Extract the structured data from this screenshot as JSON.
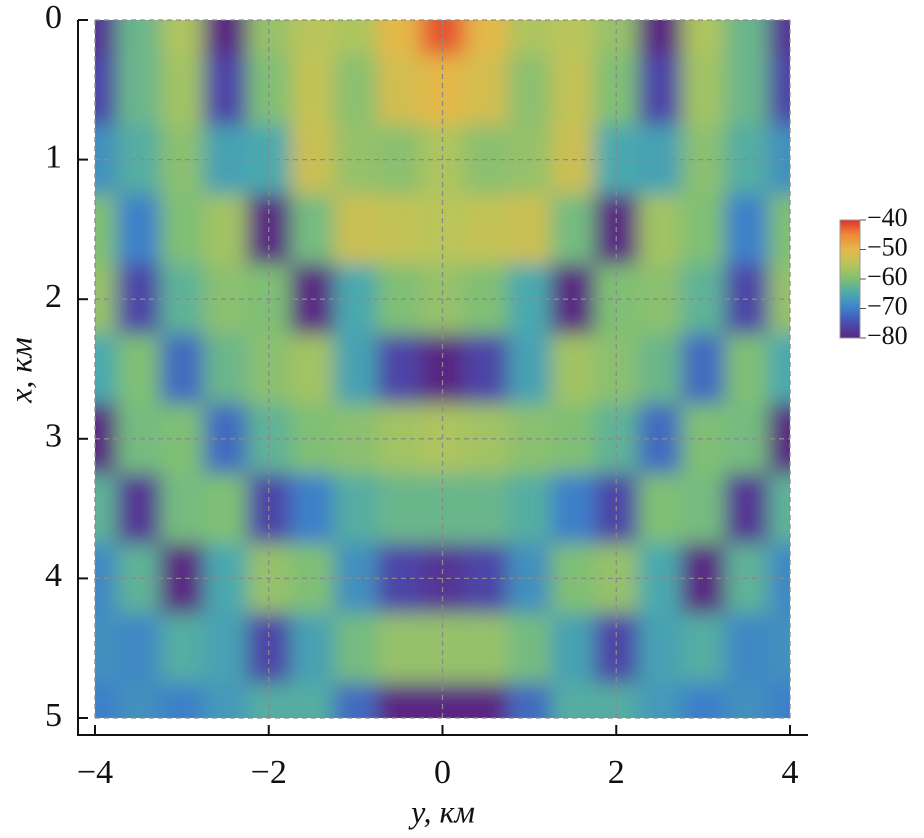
{
  "chart_data": {
    "type": "heatmap",
    "x_label": "y, км",
    "y_label": "x, км",
    "x": [
      -4,
      -3.5,
      -3,
      -2.5,
      -2,
      -1.5,
      -1,
      -0.5,
      0,
      0.5,
      1,
      1.5,
      2,
      2.5,
      3,
      3.5,
      4
    ],
    "y": [
      0,
      0.5,
      1,
      1.5,
      2,
      2.5,
      3,
      3.5,
      4,
      4.5,
      5
    ],
    "z": [
      [
        -78,
        -62,
        -56,
        -80,
        -58,
        -55,
        -56,
        -50,
        -42,
        -50,
        -56,
        -55,
        -58,
        -80,
        -56,
        -62,
        -78
      ],
      [
        -76,
        -62,
        -57,
        -76,
        -60,
        -54,
        -59,
        -52,
        -50,
        -52,
        -59,
        -54,
        -60,
        -76,
        -57,
        -62,
        -76
      ],
      [
        -68,
        -64,
        -59,
        -66,
        -65,
        -53,
        -58,
        -59,
        -56,
        -59,
        -58,
        -53,
        -65,
        -66,
        -59,
        -64,
        -68
      ],
      [
        -60,
        -70,
        -60,
        -57,
        -80,
        -61,
        -53,
        -54,
        -55,
        -54,
        -53,
        -61,
        -80,
        -57,
        -60,
        -70,
        -60
      ],
      [
        -58,
        -76,
        -63,
        -59,
        -60,
        -80,
        -65,
        -60,
        -58,
        -60,
        -65,
        -80,
        -60,
        -59,
        -63,
        -76,
        -58
      ],
      [
        -65,
        -60,
        -72,
        -62,
        -59,
        -57,
        -66,
        -76,
        -80,
        -76,
        -66,
        -57,
        -59,
        -62,
        -72,
        -60,
        -65
      ],
      [
        -80,
        -61,
        -60,
        -72,
        -63,
        -60,
        -59,
        -57,
        -56,
        -57,
        -59,
        -60,
        -63,
        -72,
        -60,
        -61,
        -80
      ],
      [
        -63,
        -78,
        -61,
        -60,
        -76,
        -70,
        -64,
        -62,
        -62,
        -62,
        -64,
        -70,
        -76,
        -60,
        -61,
        -78,
        -63
      ],
      [
        -69,
        -63,
        -80,
        -65,
        -58,
        -60,
        -68,
        -76,
        -78,
        -76,
        -68,
        -60,
        -58,
        -65,
        -80,
        -63,
        -69
      ],
      [
        -68,
        -69,
        -64,
        -66,
        -76,
        -66,
        -61,
        -58,
        -58,
        -58,
        -61,
        -66,
        -76,
        -66,
        -64,
        -69,
        -68
      ],
      [
        -70,
        -68,
        -70,
        -67,
        -64,
        -64,
        -72,
        -80,
        -80,
        -80,
        -72,
        -64,
        -64,
        -67,
        -70,
        -68,
        -70
      ]
    ],
    "xlim": [
      -4,
      4
    ],
    "ylim": [
      0,
      5
    ],
    "y_inverted": true,
    "xticks": [
      {
        "value": -4,
        "label": "−4"
      },
      {
        "value": -2,
        "label": "−2"
      },
      0,
      2,
      4
    ],
    "yticks": [
      0,
      1,
      2,
      3,
      4,
      5
    ],
    "grid": true,
    "clim": [
      -80,
      -40
    ],
    "colorbar_ticks": [
      {
        "value": -40,
        "label": "−40"
      },
      {
        "value": -50,
        "label": "−50"
      },
      {
        "value": -60,
        "label": "−60"
      },
      {
        "value": -70,
        "label": "−70"
      },
      {
        "value": -80,
        "label": "−80"
      }
    ],
    "colormap": [
      "#5a2782",
      "#4a4cb0",
      "#3d80c9",
      "#4aa9ae",
      "#7fbf74",
      "#b9c55a",
      "#e4b748",
      "#ee8a38",
      "#e0302a"
    ]
  }
}
